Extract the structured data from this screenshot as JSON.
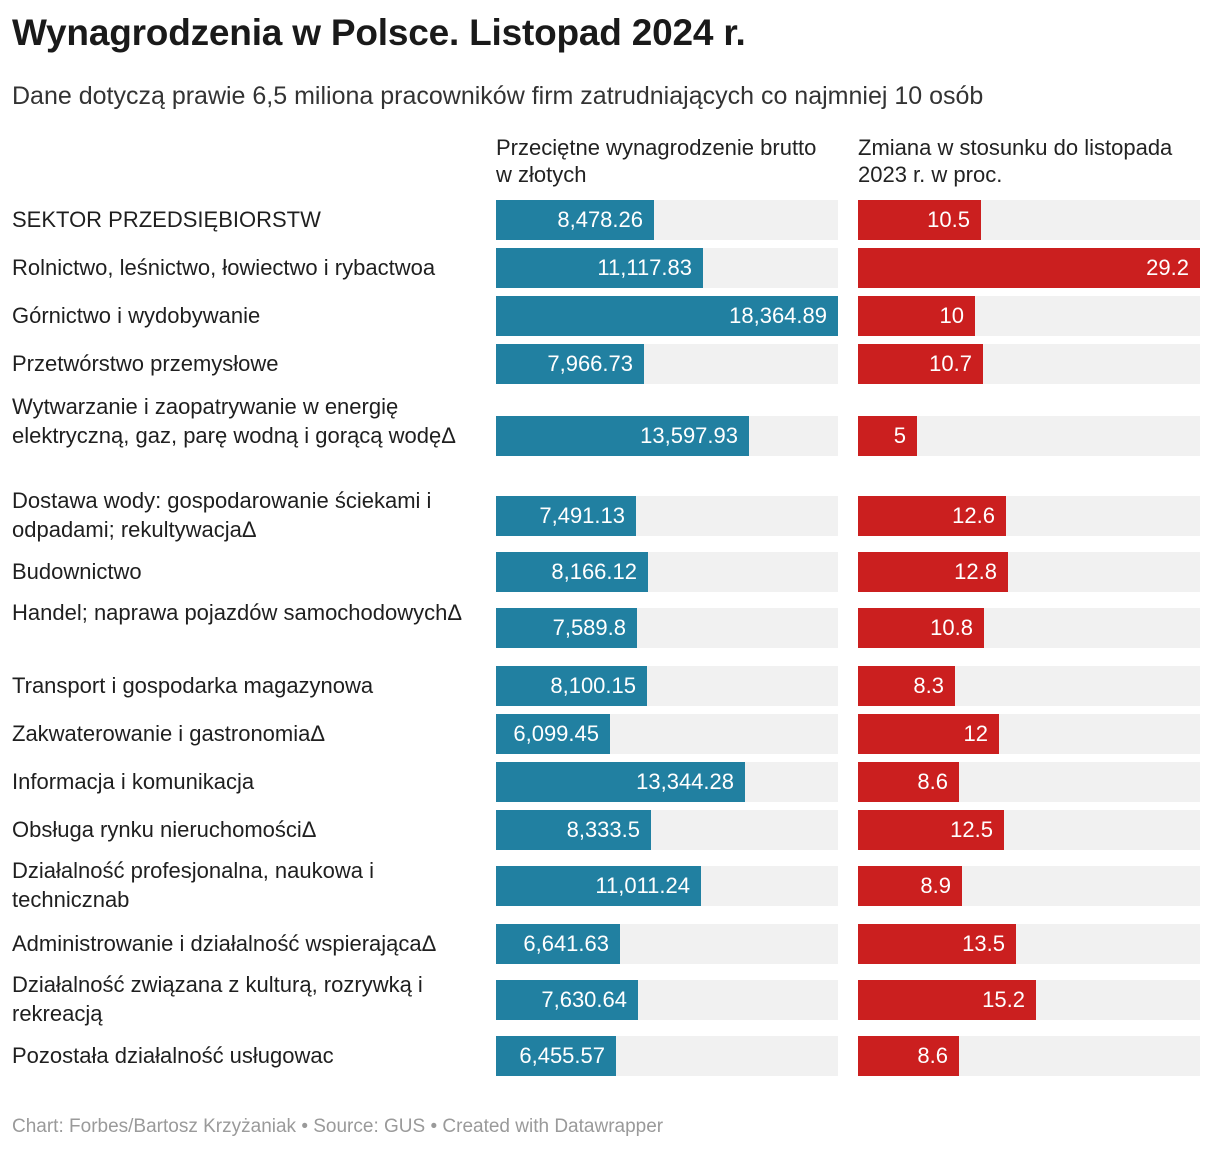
{
  "title": "Wynagrodzenia w Polsce. Listopad 2024 r.",
  "subtitle": "Dane dotyczą prawie 6,5 miliona pracowników firm zatrudniających co najmniej 10 osób",
  "footer": "Chart: Forbes/Bartosz Krzyżaniak • Source: GUS • Created with Datawrapper",
  "colors": {
    "salary_bar": "#2180a1",
    "change_bar": "#cb1f1f",
    "track": "#f1f1f1"
  },
  "chart_data": {
    "type": "bar",
    "title": "Wynagrodzenia w Polsce. Listopad 2024 r.",
    "subtitle": "Dane dotyczą prawie 6,5 miliona pracowników firm zatrudniających co najmniej 10 osób",
    "columns": [
      {
        "key": "salary",
        "label": "Przeciętne wynagrodzenie brutto w złotych",
        "max": 18364.89
      },
      {
        "key": "change",
        "label": "Zmiana w stosunku do listopada 2023 r. w proc.",
        "max": 29.2
      }
    ],
    "rows": [
      {
        "label": "SEKTOR PRZEDSIĘBIORSTW",
        "salary": 8478.26,
        "salary_label": "8,478.26",
        "change": 10.5,
        "change_label": "10.5"
      },
      {
        "label": "Rolnictwo, leśnictwo, łowiectwo i rybactwoa",
        "salary": 11117.83,
        "salary_label": "11,117.83",
        "change": 29.2,
        "change_label": "29.2"
      },
      {
        "label": "Górnictwo i wydobywanie",
        "salary": 18364.89,
        "salary_label": "18,364.89",
        "change": 10,
        "change_label": "10"
      },
      {
        "label": "Przetwórstwo przemysłowe",
        "salary": 7966.73,
        "salary_label": "7,966.73",
        "change": 10.7,
        "change_label": "10.7"
      },
      {
        "label": "Wytwarzanie i zaopatrywanie w energię elektryczną, gaz, parę wodną i gorącą wodęΔ",
        "salary": 13597.93,
        "salary_label": "13,597.93",
        "change": 5,
        "change_label": "5"
      },
      {
        "label": "Dostawa wody: gospodarowanie ściekami i odpadami; rekultywacjaΔ",
        "salary": 7491.13,
        "salary_label": "7,491.13",
        "change": 12.6,
        "change_label": "12.6"
      },
      {
        "label": "Budownictwo",
        "salary": 8166.12,
        "salary_label": "8,166.12",
        "change": 12.8,
        "change_label": "12.8"
      },
      {
        "label": "Handel; naprawa pojazdów samochodowychΔ",
        "salary": 7589.8,
        "salary_label": "7,589.8",
        "change": 10.8,
        "change_label": "10.8"
      },
      {
        "label": "Transport i gospodarka magazynowa",
        "salary": 8100.15,
        "salary_label": "8,100.15",
        "change": 8.3,
        "change_label": "8.3"
      },
      {
        "label": "Zakwaterowanie i gastronomiaΔ",
        "salary": 6099.45,
        "salary_label": "6,099.45",
        "change": 12,
        "change_label": "12"
      },
      {
        "label": "Informacja i komunikacja",
        "salary": 13344.28,
        "salary_label": "13,344.28",
        "change": 8.6,
        "change_label": "8.6"
      },
      {
        "label": "Obsługa rynku nieruchomościΔ",
        "salary": 8333.5,
        "salary_label": "8,333.5",
        "change": 12.5,
        "change_label": "12.5"
      },
      {
        "label": "Działalność profesjonalna, naukowa i technicznab",
        "salary": 11011.24,
        "salary_label": "11,011.24",
        "change": 8.9,
        "change_label": "8.9"
      },
      {
        "label": "Administrowanie i działalność wspierającaΔ",
        "salary": 6641.63,
        "salary_label": "6,641.63",
        "change": 13.5,
        "change_label": "13.5"
      },
      {
        "label": "Działalność związana z kulturą, rozrywką i rekreacją",
        "salary": 7630.64,
        "salary_label": "7,630.64",
        "change": 15.2,
        "change_label": "15.2"
      },
      {
        "label": "Pozostała działalność usługowac",
        "salary": 6455.57,
        "salary_label": "6,455.57",
        "change": 8.6,
        "change_label": "8.6"
      }
    ]
  }
}
